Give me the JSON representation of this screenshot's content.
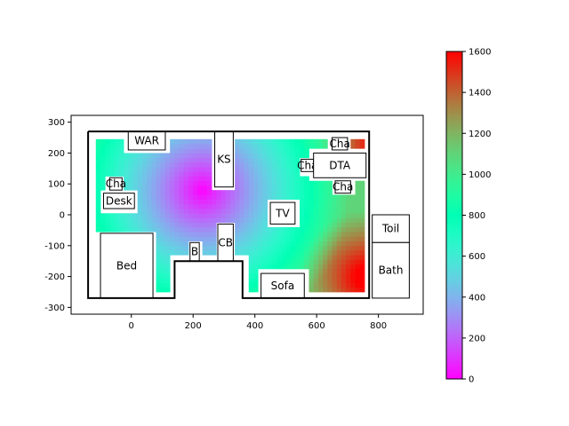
{
  "chart_data": {
    "type": "heatmap",
    "title": "",
    "xlabel": "",
    "ylabel": "",
    "xlim": [
      -195,
      945
    ],
    "ylim": [
      -322,
      322
    ],
    "x_ticks": [
      0,
      200,
      400,
      600,
      800
    ],
    "y_ticks": [
      -300,
      -200,
      -100,
      0,
      100,
      200,
      300
    ],
    "colormap": "rainbow",
    "colorbar": {
      "range": [
        0,
        1600
      ],
      "ticks": [
        0,
        200,
        400,
        600,
        800,
        1000,
        1200,
        1400,
        1600
      ]
    },
    "heat_sources": [
      {
        "x": 230,
        "y": 80,
        "value": 0,
        "spread": 260
      },
      {
        "x": 760,
        "y": -200,
        "value": 1600,
        "spread": 0
      }
    ],
    "walls": [
      [
        [
          -140,
          270
        ],
        [
          770,
          270
        ],
        [
          770,
          -270
        ],
        [
          360,
          -270
        ],
        [
          360,
          -150
        ],
        [
          140,
          -150
        ],
        [
          140,
          -270
        ],
        [
          -140,
          -270
        ],
        [
          -140,
          270
        ]
      ]
    ],
    "rooms": [
      {
        "label": "WAR",
        "x": [
          -10,
          110
        ],
        "y": [
          210,
          270
        ]
      },
      {
        "label": "KS",
        "x": [
          270,
          330
        ],
        "y": [
          90,
          270
        ]
      },
      {
        "label": "Cha",
        "x": [
          650,
          700
        ],
        "y": [
          210,
          250
        ]
      },
      {
        "label": "Cha",
        "x": [
          550,
          590
        ],
        "y": [
          140,
          180
        ]
      },
      {
        "label": "DTA",
        "x": [
          590,
          760
        ],
        "y": [
          120,
          200
        ]
      },
      {
        "label": "Cha",
        "x": [
          -70,
          -30
        ],
        "y": [
          80,
          120
        ]
      },
      {
        "label": "Cha",
        "x": [
          660,
          710
        ],
        "y": [
          70,
          110
        ]
      },
      {
        "label": "Desk",
        "x": [
          -90,
          10
        ],
        "y": [
          20,
          70
        ]
      },
      {
        "label": "TV",
        "x": [
          450,
          530
        ],
        "y": [
          -30,
          40
        ]
      },
      {
        "label": "Toil",
        "x": [
          780,
          900
        ],
        "y": [
          -90,
          0
        ]
      },
      {
        "label": "Bed",
        "x": [
          -100,
          70
        ],
        "y": [
          -270,
          -60
        ]
      },
      {
        "label": "B",
        "x": [
          190,
          220
        ],
        "y": [
          -150,
          -90
        ]
      },
      {
        "label": "CB",
        "x": [
          280,
          330
        ],
        "y": [
          -150,
          -30
        ]
      },
      {
        "label": "Bath",
        "x": [
          780,
          900
        ],
        "y": [
          -270,
          -90
        ]
      },
      {
        "label": "Sofa",
        "x": [
          420,
          560
        ],
        "y": [
          -270,
          -190
        ]
      }
    ]
  }
}
